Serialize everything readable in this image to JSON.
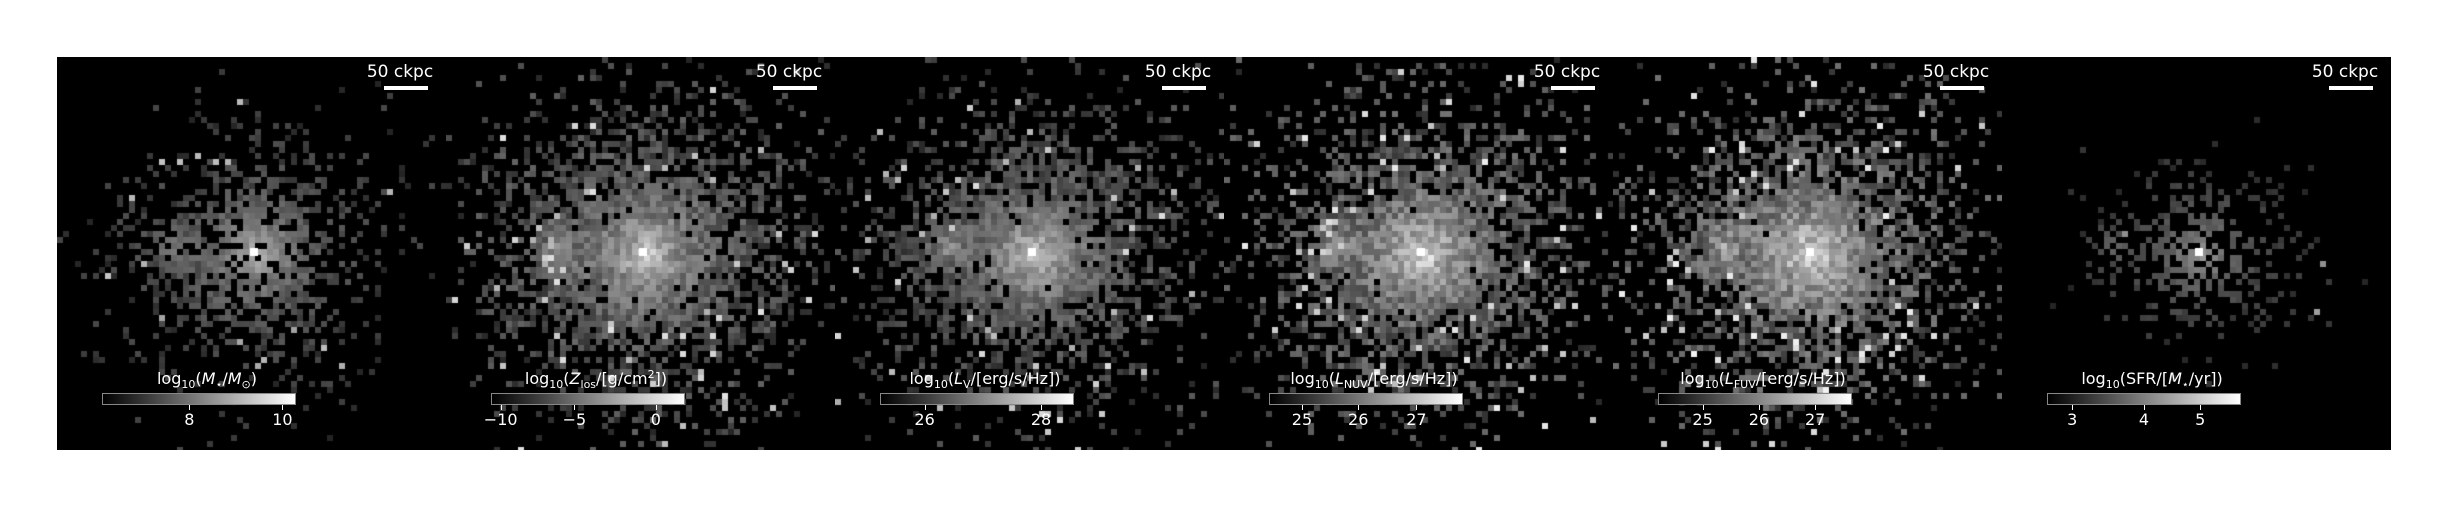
{
  "scale_bar_label": "50 ckpc",
  "panels": [
    {
      "id": "stellar-mass",
      "title": {
        "lead": "log",
        "sub1": "10",
        "open": "(",
        "ital": "M",
        "sub2": "⋆",
        "mid": "/",
        "ital2": "M",
        "sub3": "⊙",
        "tail": ")",
        "sup": ""
      },
      "ticks": [
        {
          "label": "8",
          "pos": 0.45
        },
        {
          "label": "10",
          "pos": 0.93
        }
      ],
      "brightness": 0.55,
      "spread": 0.75
    },
    {
      "id": "metal-column-density",
      "title": {
        "lead": "log",
        "sub1": "10",
        "open": "(",
        "ital": "Z",
        "sub2": "los",
        "mid": "/[g/cm",
        "ital2": "",
        "sub3": "",
        "tail": "])",
        "sup": "2"
      },
      "ticks": [
        {
          "label": "−10",
          "pos": 0.05
        },
        {
          "label": "−5",
          "pos": 0.43
        },
        {
          "label": "0",
          "pos": 0.85
        }
      ],
      "brightness": 0.75,
      "spread": 1.0
    },
    {
      "id": "v-band-luminosity",
      "title": {
        "lead": "log",
        "sub1": "10",
        "open": "(",
        "ital": "L",
        "sub2": "V",
        "mid": "/[erg/s/Hz])",
        "ital2": "",
        "sub3": "",
        "tail": "",
        "sup": ""
      },
      "ticks": [
        {
          "label": "26",
          "pos": 0.23
        },
        {
          "label": "28",
          "pos": 0.83
        }
      ],
      "brightness": 0.7,
      "spread": 0.95
    },
    {
      "id": "nuv-luminosity",
      "title": {
        "lead": "log",
        "sub1": "10",
        "open": "(",
        "ital": "L",
        "sub2": "NUV",
        "mid": "/[erg/s/Hz])",
        "ital2": "",
        "sub3": "",
        "tail": "",
        "sup": ""
      },
      "ticks": [
        {
          "label": "25",
          "pos": 0.17
        },
        {
          "label": "26",
          "pos": 0.46
        },
        {
          "label": "27",
          "pos": 0.76
        }
      ],
      "brightness": 0.85,
      "spread": 1.0
    },
    {
      "id": "fuv-luminosity",
      "title": {
        "lead": "log",
        "sub1": "10",
        "open": "(",
        "ital": "L",
        "sub2": "FUV",
        "mid": "/[erg/s/Hz])",
        "ital2": "",
        "sub3": "",
        "tail": "",
        "sup": ""
      },
      "ticks": [
        {
          "label": "25",
          "pos": 0.23
        },
        {
          "label": "26",
          "pos": 0.52
        },
        {
          "label": "27",
          "pos": 0.81
        }
      ],
      "brightness": 0.9,
      "spread": 1.0
    },
    {
      "id": "star-formation-rate",
      "title": {
        "lead": "log",
        "sub1": "10",
        "open": "(SFR/[",
        "ital": "M",
        "sub2": "⋆",
        "mid": "/yr])",
        "ital2": "",
        "sub3": "",
        "tail": "",
        "sup": ""
      },
      "ticks": [
        {
          "label": "3",
          "pos": 0.13
        },
        {
          "label": "4",
          "pos": 0.5
        },
        {
          "label": "5",
          "pos": 0.79
        }
      ],
      "brightness": 0.35,
      "spread": 0.55
    }
  ]
}
